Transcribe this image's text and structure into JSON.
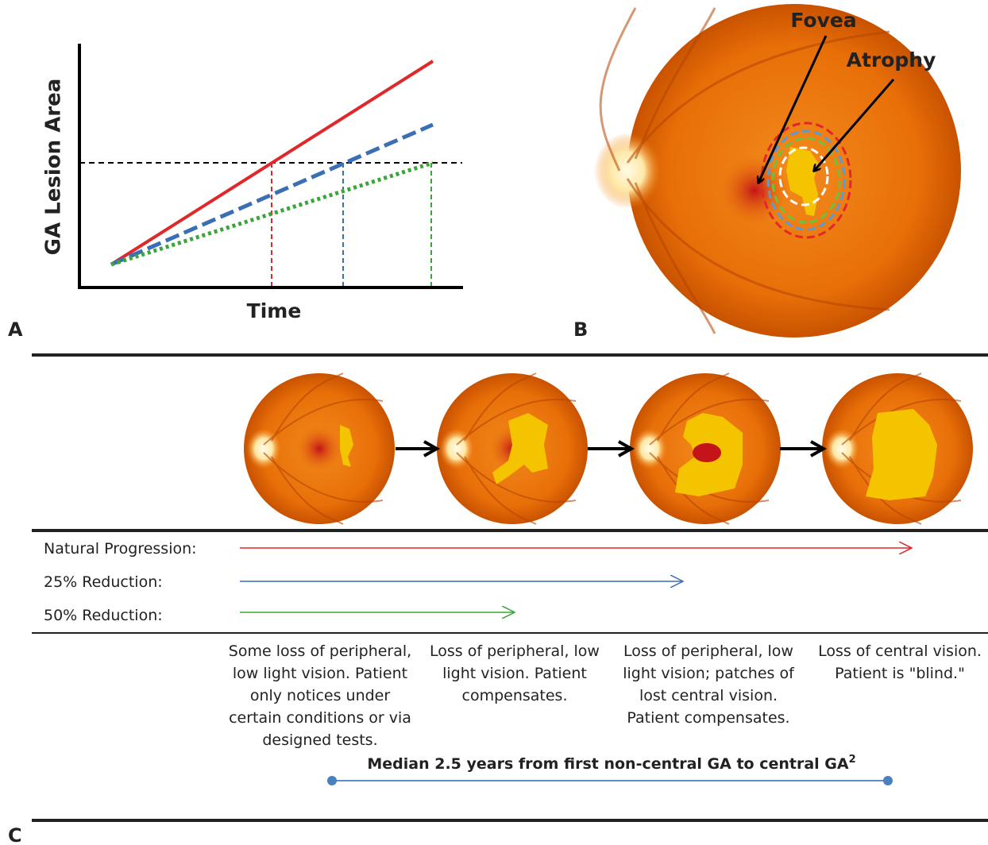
{
  "panel_a": {
    "label": "A",
    "y_axis_label": "GA Lesion Area",
    "x_axis_label": "Time"
  },
  "panel_b": {
    "label": "B",
    "annotations": [
      "Fovea",
      "Atrophy"
    ]
  },
  "panel_c": {
    "label": "C",
    "rows": [
      "Natural Progression:",
      "25% Reduction:",
      "50% Reduction:"
    ],
    "descriptions": [
      [
        "Some loss of peripheral,",
        "low light vision. Patient",
        "only notices under",
        "certain conditions or via",
        "designed tests."
      ],
      [
        "Loss of peripheral, low",
        "light vision. Patient",
        "compensates."
      ],
      [
        "Loss of peripheral, low",
        "light vision; patches of",
        "lost central vision.",
        "Patient compensates."
      ],
      [
        "Loss of central vision.",
        "Patient is \"blind.\""
      ]
    ],
    "timeline": {
      "text": "Median 2.5 years from first non-central GA to central GA",
      "superscript": "2"
    }
  }
}
